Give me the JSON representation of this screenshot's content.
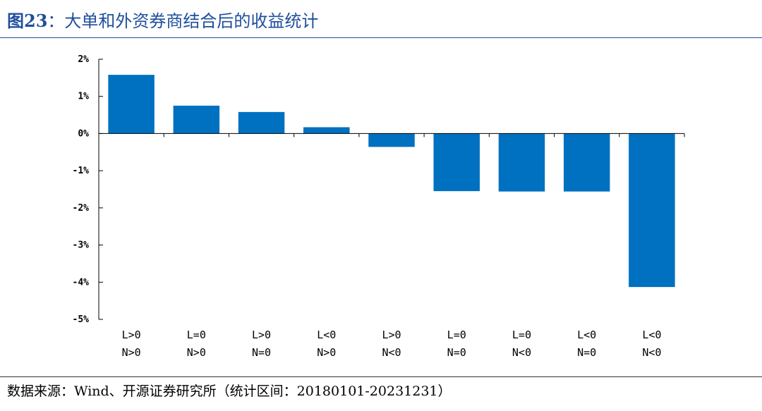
{
  "title": {
    "number": "图23",
    "separator": "：",
    "text": "大单和外资券商结合后的收益统计"
  },
  "source": "数据来源：Wind、开源证券研究所（统计区间：20180101-20231231）",
  "colors": {
    "bar": "#0070c0",
    "title": "#1f4e9c"
  },
  "chart_data": {
    "type": "bar",
    "title": "",
    "xlabel": "",
    "ylabel": "",
    "ylim": [
      -5,
      2
    ],
    "yticks": [
      "2%",
      "1%",
      "0%",
      "-1%",
      "-2%",
      "-3%",
      "-4%",
      "-5%"
    ],
    "grid": false,
    "categories": [
      [
        "L>0",
        "N>0"
      ],
      [
        "L=0",
        "N>0"
      ],
      [
        "L>0",
        "N=0"
      ],
      [
        "L<0",
        "N>0"
      ],
      [
        "L>0",
        "N<0"
      ],
      [
        "L=0",
        "N=0"
      ],
      [
        "L=0",
        "N<0"
      ],
      [
        "L<0",
        "N=0"
      ],
      [
        "L<0",
        "N<0"
      ]
    ],
    "values": [
      1.58,
      0.75,
      0.58,
      0.17,
      -0.36,
      -1.55,
      -1.56,
      -1.56,
      -4.13
    ],
    "unit": "%"
  }
}
